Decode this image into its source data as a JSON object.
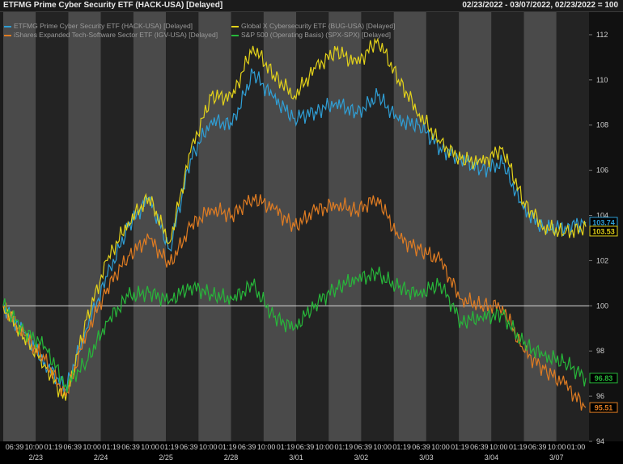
{
  "header": {
    "title": "ETFMG Prime Cyber Security ETF (HACK-USA) [Delayed]",
    "range": "02/23/2022 - 03/07/2022, 02/23/2022 = 100"
  },
  "chart_data": {
    "type": "line",
    "title": "",
    "xlabel": "",
    "ylabel": "",
    "ylim": [
      94,
      113
    ],
    "yticks": [
      94,
      96,
      98,
      100,
      102,
      104,
      106,
      108,
      110,
      112
    ],
    "baseline": 100,
    "grid": false,
    "legend_position": "top-left",
    "x_time_labels": [
      "06:39",
      "10:00",
      "01:19",
      "06:39",
      "10:00",
      "01:19",
      "06:39",
      "10:00",
      "01:19",
      "06:39",
      "10:00",
      "01:19",
      "06:39",
      "10:00",
      "01:19",
      "06:39",
      "10:00",
      "01:19",
      "06:39",
      "10:00",
      "01:19",
      "06:39",
      "10:00",
      "01:19",
      "06:39",
      "10:00",
      "01:19",
      "06:39",
      "10:00",
      "01:00"
    ],
    "day_labels": [
      "2/23",
      "2/24",
      "2/25",
      "2/28",
      "3/01",
      "3/02",
      "3/03",
      "3/04",
      "3/07"
    ],
    "x": [
      0,
      1,
      2,
      3,
      4,
      5,
      6,
      7,
      8,
      9,
      10,
      11,
      12,
      13,
      14,
      15,
      16,
      17,
      18,
      19,
      20,
      21,
      22,
      23,
      24,
      25,
      26,
      27,
      28
    ],
    "series": [
      {
        "name": "ETFMG Prime Cyber Security ETF (HACK-USA) [Delayed]",
        "color": "#2f9fd6",
        "last_label": "103.74",
        "values": [
          100.0,
          98.8,
          97.5,
          96.3,
          99.0,
          101.3,
          103.5,
          104.8,
          102.5,
          106.5,
          108.2,
          108.0,
          110.3,
          109.2,
          108.3,
          108.6,
          109.0,
          108.5,
          109.3,
          108.2,
          108.0,
          107.0,
          106.5,
          106.0,
          106.3,
          104.3,
          103.4,
          103.5,
          103.7
        ]
      },
      {
        "name": "Global X Cybersecurity ETF (BUG-USA) [Delayed]",
        "color": "#e3d21a",
        "last_label": "103.53",
        "values": [
          100.0,
          98.6,
          97.4,
          95.8,
          99.4,
          102.0,
          103.7,
          104.8,
          102.8,
          106.8,
          109.3,
          109.2,
          111.5,
          110.2,
          109.3,
          110.5,
          111.3,
          110.7,
          111.8,
          110.0,
          108.5,
          107.2,
          106.5,
          106.3,
          107.0,
          104.6,
          103.5,
          103.2,
          103.5
        ]
      },
      {
        "name": "iShares Expanded Tech-Software Sector ETF (IGV-USA) [Delayed]",
        "color": "#e07c22",
        "last_label": "95.51",
        "values": [
          100.0,
          98.7,
          97.6,
          96.0,
          98.8,
          100.8,
          102.2,
          103.0,
          101.8,
          103.5,
          104.3,
          104.0,
          104.8,
          104.3,
          103.5,
          104.2,
          104.5,
          104.2,
          104.8,
          103.0,
          102.5,
          102.0,
          100.3,
          100.0,
          100.0,
          98.0,
          97.2,
          96.5,
          95.5
        ]
      },
      {
        "name": "S&P 500 (Operating Basis) (SPX-SPX) [Delayed]",
        "color": "#27b83a",
        "last_label": "96.83",
        "values": [
          100.0,
          98.9,
          98.2,
          96.5,
          97.5,
          99.3,
          100.4,
          100.6,
          100.2,
          100.9,
          100.5,
          100.3,
          100.9,
          99.5,
          99.0,
          100.1,
          100.8,
          101.2,
          101.4,
          100.8,
          100.5,
          101.0,
          99.3,
          99.5,
          99.6,
          98.3,
          97.8,
          97.5,
          96.8
        ]
      }
    ]
  }
}
